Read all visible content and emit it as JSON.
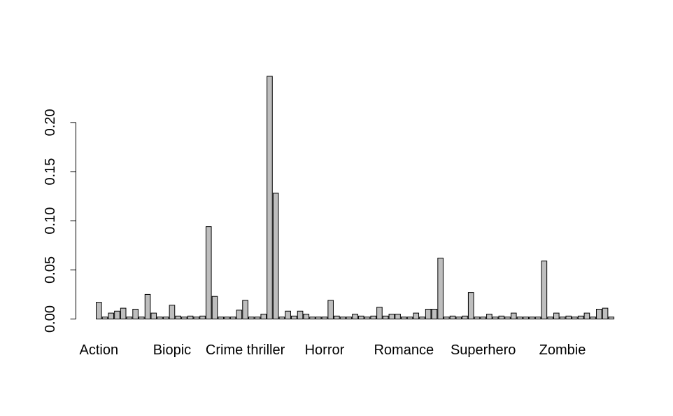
{
  "chart_data": {
    "type": "bar",
    "title": "",
    "xlabel": "",
    "ylabel": "",
    "ylim": [
      0,
      0.25
    ],
    "yticks": [
      0.0,
      0.05,
      0.1,
      0.15,
      0.2
    ],
    "ytick_labels": [
      "0.00",
      "0.05",
      "0.10",
      "0.15",
      "0.20"
    ],
    "category_labels": [
      {
        "label": "Action",
        "bar_index": 0
      },
      {
        "label": "Biopic",
        "bar_index": 12
      },
      {
        "label": "Crime thriller",
        "bar_index": 24
      },
      {
        "label": "Horror",
        "bar_index": 37
      },
      {
        "label": "Romance",
        "bar_index": 50
      },
      {
        "label": "Superhero",
        "bar_index": 63
      },
      {
        "label": "Zombie",
        "bar_index": 76
      }
    ],
    "values": [
      0.017,
      0.002,
      0.006,
      0.008,
      0.011,
      0.002,
      0.01,
      0.002,
      0.025,
      0.006,
      0.002,
      0.002,
      0.014,
      0.003,
      0.002,
      0.003,
      0.002,
      0.003,
      0.094,
      0.023,
      0.002,
      0.002,
      0.002,
      0.009,
      0.019,
      0.002,
      0.002,
      0.005,
      0.247,
      0.128,
      0.002,
      0.008,
      0.003,
      0.008,
      0.005,
      0.002,
      0.002,
      0.002,
      0.019,
      0.003,
      0.002,
      0.002,
      0.005,
      0.003,
      0.002,
      0.003,
      0.012,
      0.003,
      0.005,
      0.005,
      0.002,
      0.002,
      0.006,
      0.002,
      0.01,
      0.01,
      0.062,
      0.002,
      0.003,
      0.002,
      0.003,
      0.027,
      0.002,
      0.002,
      0.005,
      0.002,
      0.003,
      0.002,
      0.006,
      0.002,
      0.002,
      0.002,
      0.002,
      0.059,
      0.002,
      0.006,
      0.002,
      0.003,
      0.002,
      0.003,
      0.006,
      0.002,
      0.01,
      0.011,
      0.002
    ],
    "bar_fill": "#bebebe",
    "bar_stroke": "#000000",
    "grid": false,
    "legend": "none"
  }
}
